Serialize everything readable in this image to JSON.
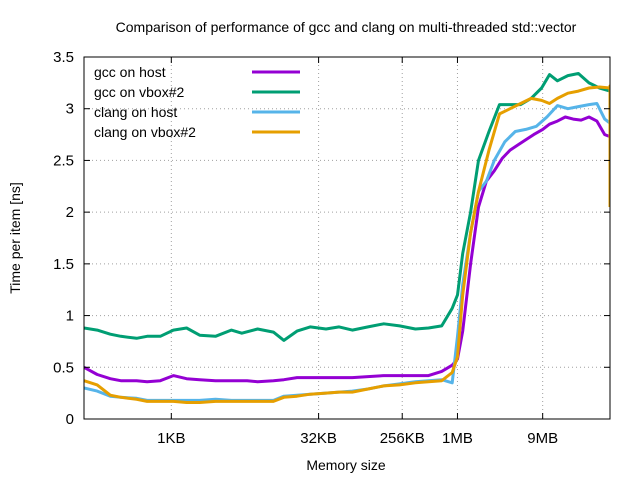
{
  "chart_data": {
    "type": "line",
    "title": "Comparison of performance of gcc and clang on multi-threaded std::vector",
    "xlabel": "Memory size",
    "ylabel": "Time per item [ns]",
    "ylim": [
      0,
      3.5
    ],
    "yticks": [
      0,
      0.5,
      1,
      1.5,
      2,
      2.5,
      3,
      3.5
    ],
    "ytick_labels": [
      "0",
      "0.5",
      "1",
      "1.5",
      "2",
      "2.5",
      "3",
      "3.5"
    ],
    "xlim": [
      0,
      100
    ],
    "xticks": [
      {
        "label": "1KB",
        "x": 16.6
      },
      {
        "label": "32KB",
        "x": 44.6
      },
      {
        "label": "256KB",
        "x": 60.5
      },
      {
        "label": "1MB",
        "x": 71.0
      },
      {
        "label": "9MB",
        "x": 87.2
      }
    ],
    "grid": true,
    "legend_position": "top-left",
    "series": [
      {
        "name": "gcc on host",
        "color": "#9400d3",
        "points": [
          [
            0,
            0.5
          ],
          [
            2.5,
            0.43
          ],
          [
            5,
            0.39
          ],
          [
            7,
            0.37
          ],
          [
            10,
            0.37
          ],
          [
            12,
            0.36
          ],
          [
            14.5,
            0.37
          ],
          [
            17,
            0.42
          ],
          [
            19.5,
            0.39
          ],
          [
            22,
            0.38
          ],
          [
            25,
            0.37
          ],
          [
            28,
            0.37
          ],
          [
            31,
            0.37
          ],
          [
            33,
            0.36
          ],
          [
            36,
            0.37
          ],
          [
            38,
            0.38
          ],
          [
            40.5,
            0.4
          ],
          [
            43,
            0.4
          ],
          [
            46,
            0.4
          ],
          [
            48.5,
            0.4
          ],
          [
            51,
            0.4
          ],
          [
            54,
            0.41
          ],
          [
            57,
            0.42
          ],
          [
            60,
            0.42
          ],
          [
            63,
            0.42
          ],
          [
            65.5,
            0.42
          ],
          [
            68,
            0.46
          ],
          [
            70,
            0.52
          ],
          [
            71,
            0.58
          ],
          [
            72,
            0.85
          ],
          [
            73.5,
            1.5
          ],
          [
            75,
            2.05
          ],
          [
            76.5,
            2.3
          ],
          [
            78,
            2.4
          ],
          [
            79.5,
            2.52
          ],
          [
            81,
            2.6
          ],
          [
            82.5,
            2.65
          ],
          [
            84,
            2.7
          ],
          [
            85.5,
            2.75
          ],
          [
            87.2,
            2.8
          ],
          [
            88.5,
            2.85
          ],
          [
            90,
            2.88
          ],
          [
            91.5,
            2.92
          ],
          [
            93,
            2.9
          ],
          [
            94.5,
            2.89
          ],
          [
            96,
            2.92
          ],
          [
            97.5,
            2.88
          ],
          [
            99,
            2.75
          ],
          [
            100.5,
            2.73
          ],
          [
            102,
            2.7
          ],
          [
            103,
            2.6
          ],
          [
            104,
            2.1
          ]
        ]
      },
      {
        "name": "gcc on vbox#2",
        "color": "#009e73",
        "points": [
          [
            0,
            0.88
          ],
          [
            2.5,
            0.86
          ],
          [
            5,
            0.82
          ],
          [
            7,
            0.8
          ],
          [
            10,
            0.78
          ],
          [
            12,
            0.8
          ],
          [
            14.5,
            0.8
          ],
          [
            17,
            0.86
          ],
          [
            19.5,
            0.88
          ],
          [
            22,
            0.81
          ],
          [
            25,
            0.8
          ],
          [
            28,
            0.86
          ],
          [
            30,
            0.83
          ],
          [
            33,
            0.87
          ],
          [
            36,
            0.84
          ],
          [
            38,
            0.76
          ],
          [
            40.5,
            0.85
          ],
          [
            43,
            0.89
          ],
          [
            46,
            0.87
          ],
          [
            48.5,
            0.89
          ],
          [
            51,
            0.86
          ],
          [
            54,
            0.89
          ],
          [
            57,
            0.92
          ],
          [
            60,
            0.9
          ],
          [
            63,
            0.87
          ],
          [
            65.5,
            0.88
          ],
          [
            68,
            0.9
          ],
          [
            70,
            1.07
          ],
          [
            71,
            1.2
          ],
          [
            72,
            1.6
          ],
          [
            73.5,
            2.0
          ],
          [
            75,
            2.5
          ],
          [
            77,
            2.78
          ],
          [
            79,
            3.04
          ],
          [
            81,
            3.04
          ],
          [
            83,
            3.04
          ],
          [
            85,
            3.1
          ],
          [
            87,
            3.2
          ],
          [
            88.5,
            3.33
          ],
          [
            90,
            3.27
          ],
          [
            92,
            3.32
          ],
          [
            94,
            3.34
          ],
          [
            96,
            3.25
          ],
          [
            98,
            3.2
          ],
          [
            100,
            3.17
          ],
          [
            102,
            3.14
          ],
          [
            103,
            3.0
          ],
          [
            104,
            2.08
          ]
        ]
      },
      {
        "name": "clang on host",
        "color": "#56b4e9",
        "points": [
          [
            0,
            0.3
          ],
          [
            2.5,
            0.27
          ],
          [
            5,
            0.22
          ],
          [
            7,
            0.21
          ],
          [
            10,
            0.2
          ],
          [
            12,
            0.18
          ],
          [
            14.5,
            0.18
          ],
          [
            17,
            0.18
          ],
          [
            19.5,
            0.18
          ],
          [
            22,
            0.18
          ],
          [
            25,
            0.19
          ],
          [
            28,
            0.18
          ],
          [
            31,
            0.18
          ],
          [
            33,
            0.18
          ],
          [
            36,
            0.18
          ],
          [
            38,
            0.22
          ],
          [
            40.5,
            0.23
          ],
          [
            43,
            0.24
          ],
          [
            46,
            0.25
          ],
          [
            48.5,
            0.26
          ],
          [
            51,
            0.27
          ],
          [
            54,
            0.29
          ],
          [
            57,
            0.32
          ],
          [
            60,
            0.34
          ],
          [
            63,
            0.36
          ],
          [
            65.5,
            0.37
          ],
          [
            68,
            0.38
          ],
          [
            70,
            0.35
          ],
          [
            71,
            0.8
          ],
          [
            72,
            1.3
          ],
          [
            73.5,
            1.8
          ],
          [
            75,
            2.2
          ],
          [
            76.5,
            2.3
          ],
          [
            78,
            2.5
          ],
          [
            80,
            2.68
          ],
          [
            82,
            2.78
          ],
          [
            84,
            2.8
          ],
          [
            86,
            2.83
          ],
          [
            88,
            2.92
          ],
          [
            90,
            3.03
          ],
          [
            92,
            3.0
          ],
          [
            94,
            3.02
          ],
          [
            96,
            3.04
          ],
          [
            97.5,
            3.05
          ],
          [
            99,
            2.9
          ],
          [
            100.5,
            2.86
          ],
          [
            102,
            2.83
          ],
          [
            103,
            2.6
          ],
          [
            104,
            2.05
          ]
        ]
      },
      {
        "name": "clang on vbox#2",
        "color": "#e69f00",
        "points": [
          [
            0,
            0.37
          ],
          [
            2.5,
            0.33
          ],
          [
            5,
            0.23
          ],
          [
            7,
            0.21
          ],
          [
            10,
            0.19
          ],
          [
            12,
            0.17
          ],
          [
            14.5,
            0.17
          ],
          [
            17,
            0.17
          ],
          [
            19.5,
            0.16
          ],
          [
            22,
            0.16
          ],
          [
            25,
            0.17
          ],
          [
            28,
            0.17
          ],
          [
            31,
            0.17
          ],
          [
            33,
            0.17
          ],
          [
            36,
            0.17
          ],
          [
            38,
            0.21
          ],
          [
            40.5,
            0.22
          ],
          [
            43,
            0.24
          ],
          [
            46,
            0.25
          ],
          [
            48.5,
            0.26
          ],
          [
            51,
            0.26
          ],
          [
            54,
            0.29
          ],
          [
            57,
            0.32
          ],
          [
            60,
            0.33
          ],
          [
            63,
            0.35
          ],
          [
            65.5,
            0.36
          ],
          [
            68,
            0.37
          ],
          [
            70,
            0.45
          ],
          [
            71,
            0.6
          ],
          [
            72,
            1.2
          ],
          [
            73.5,
            1.8
          ],
          [
            75,
            2.2
          ],
          [
            77,
            2.6
          ],
          [
            79,
            2.95
          ],
          [
            81,
            3.0
          ],
          [
            83,
            3.05
          ],
          [
            85,
            3.1
          ],
          [
            87,
            3.08
          ],
          [
            88.5,
            3.05
          ],
          [
            90,
            3.1
          ],
          [
            92,
            3.15
          ],
          [
            94,
            3.17
          ],
          [
            96,
            3.2
          ],
          [
            98,
            3.21
          ],
          [
            100,
            3.2
          ],
          [
            102,
            3.22
          ],
          [
            103,
            2.5
          ],
          [
            104,
            2.05
          ]
        ]
      }
    ]
  }
}
